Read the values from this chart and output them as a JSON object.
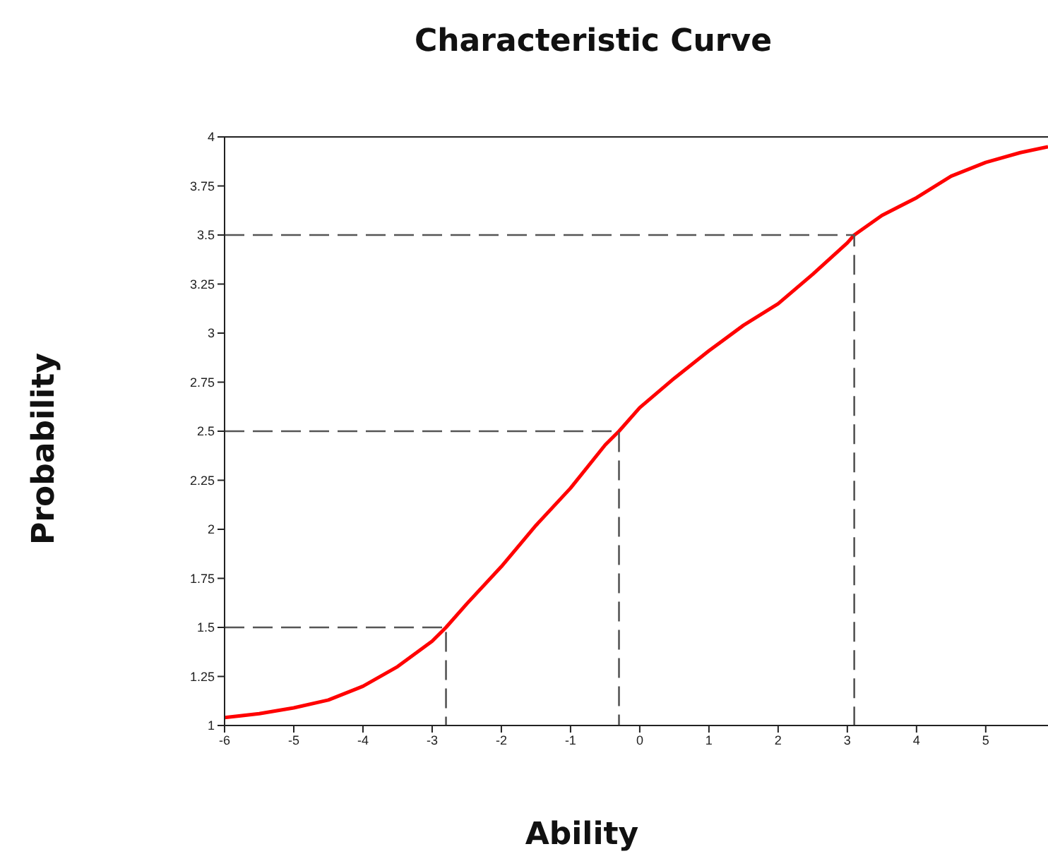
{
  "chart_data": {
    "type": "line",
    "title": "Characteristic Curve",
    "xlabel": "Ability",
    "ylabel": "Probability",
    "xlim": [
      -6,
      5.9
    ],
    "xticks": [
      -6,
      -5,
      -4,
      -3,
      -2,
      -1,
      0,
      1,
      2,
      3,
      4,
      5
    ],
    "ylim": [
      1,
      4
    ],
    "yticks": [
      1,
      1.25,
      1.5,
      1.75,
      2,
      2.25,
      2.5,
      2.75,
      3,
      3.25,
      3.5,
      3.75,
      4
    ],
    "marker": "none",
    "series": [
      {
        "color": "#ff0000",
        "line_style": "solid",
        "x": [
          -6,
          -5.5,
          -5,
          -4.5,
          -4,
          -3.5,
          -3,
          -2.8,
          -2.5,
          -2,
          -1.5,
          -1,
          -0.5,
          -0.3,
          0,
          0.5,
          1,
          1.5,
          2,
          2.5,
          3,
          3.1,
          3.5,
          4,
          4.5,
          5,
          5.5,
          5.9
        ],
        "values": [
          1.04,
          1.06,
          1.09,
          1.13,
          1.2,
          1.3,
          1.43,
          1.5,
          1.62,
          1.81,
          2.02,
          2.21,
          2.43,
          2.5,
          2.62,
          2.77,
          2.91,
          3.04,
          3.15,
          3.3,
          3.46,
          3.5,
          3.6,
          3.69,
          3.8,
          3.87,
          3.92,
          3.95
        ]
      },
      {
        "type": "line",
        "color": "#555555",
        "line_style": "dashed",
        "x": [
          -6,
          -2.8,
          -2.8
        ],
        "values": [
          1.5,
          1.5,
          1
        ]
      },
      {
        "type": "line",
        "color": "#555555",
        "line_style": "dashed",
        "x": [
          -6,
          -0.3,
          -0.3
        ],
        "values": [
          2.5,
          2.5,
          1
        ]
      },
      {
        "type": "line",
        "color": "#555555",
        "line_style": "dashed",
        "x": [
          -6,
          3.1,
          3.1
        ],
        "values": [
          3.5,
          3.5,
          1
        ]
      }
    ]
  }
}
